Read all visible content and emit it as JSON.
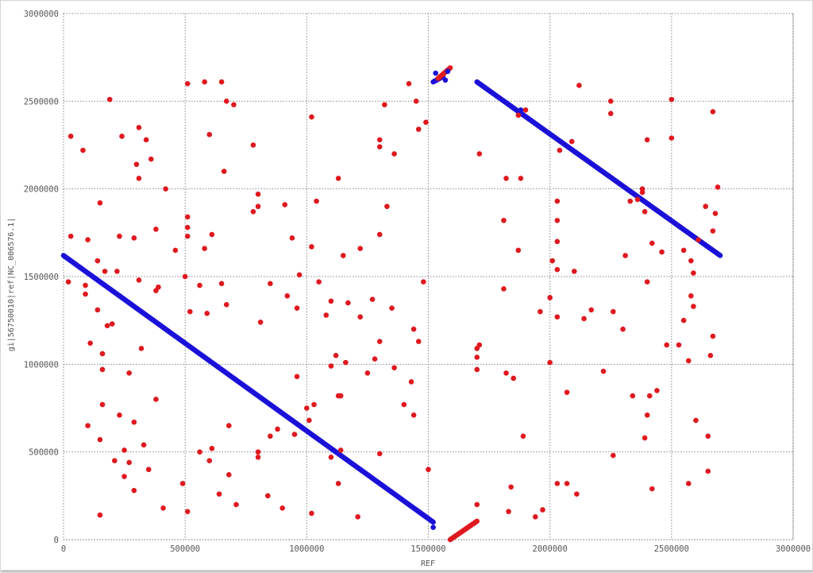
{
  "chart_data": {
    "type": "scatter",
    "xlabel": "REF",
    "ylabel": "gi|56750010|ref|NC_006576.1|",
    "xlim": [
      0,
      3000000
    ],
    "ylim": [
      0,
      3000000
    ],
    "x_ticks": [
      0,
      500000,
      1000000,
      1500000,
      2000000,
      2500000,
      3000000
    ],
    "x_tick_labels": [
      "0",
      "500000",
      "1000000",
      "1500000",
      "2000000",
      "2500000",
      "3000000"
    ],
    "y_ticks": [
      0,
      500000,
      1000000,
      1500000,
      2000000,
      2500000,
      3000000
    ],
    "y_tick_labels": [
      "0",
      "500000",
      "1000000",
      "1500000",
      "2000000",
      "2500000",
      "3000000"
    ],
    "grid": true,
    "grid_style": "dotted",
    "series": [
      {
        "color": "#1a10d8",
        "segments": [
          {
            "x0": 0,
            "y0": 1620000,
            "x1": 1520000,
            "y1": 100000
          },
          {
            "x0": 1700000,
            "y0": 2610000,
            "x1": 2700000,
            "y1": 1620000
          },
          {
            "x0": 1520000,
            "y0": 2610000,
            "x1": 1560000,
            "y1": 2640000
          }
        ],
        "points": [
          [
            1520000,
            70000
          ],
          [
            1530000,
            2660000
          ],
          [
            1570000,
            2620000
          ],
          [
            1580000,
            2670000
          ],
          [
            1880000,
            2450000
          ]
        ]
      },
      {
        "color": "#e0191f",
        "segments": [
          {
            "x0": 1590000,
            "y0": 0,
            "x1": 1700000,
            "y1": 105000
          },
          {
            "x0": 1540000,
            "y0": 2630000,
            "x1": 1590000,
            "y1": 2690000
          }
        ],
        "points": [
          [
            30000,
            2300000
          ],
          [
            80000,
            2220000
          ],
          [
            190000,
            2510000
          ],
          [
            240000,
            2300000
          ],
          [
            310000,
            2350000
          ],
          [
            340000,
            2280000
          ],
          [
            360000,
            2170000
          ],
          [
            300000,
            2140000
          ],
          [
            310000,
            2060000
          ],
          [
            420000,
            2000000
          ],
          [
            30000,
            1730000
          ],
          [
            100000,
            1710000
          ],
          [
            150000,
            1920000
          ],
          [
            230000,
            1730000
          ],
          [
            290000,
            1720000
          ],
          [
            380000,
            1770000
          ],
          [
            460000,
            1650000
          ],
          [
            500000,
            1500000
          ],
          [
            510000,
            1840000
          ],
          [
            510000,
            1780000
          ],
          [
            510000,
            1730000
          ],
          [
            510000,
            2600000
          ],
          [
            580000,
            2610000
          ],
          [
            650000,
            2610000
          ],
          [
            600000,
            2310000
          ],
          [
            660000,
            2100000
          ],
          [
            670000,
            2500000
          ],
          [
            700000,
            2480000
          ],
          [
            780000,
            2250000
          ],
          [
            800000,
            1970000
          ],
          [
            780000,
            1870000
          ],
          [
            800000,
            1900000
          ],
          [
            910000,
            1910000
          ],
          [
            940000,
            1720000
          ],
          [
            1020000,
            2410000
          ],
          [
            1040000,
            1930000
          ],
          [
            1050000,
            1470000
          ],
          [
            1020000,
            1670000
          ],
          [
            1130000,
            2060000
          ],
          [
            1150000,
            1620000
          ],
          [
            1220000,
            1660000
          ],
          [
            1300000,
            2280000
          ],
          [
            1300000,
            2240000
          ],
          [
            1320000,
            2480000
          ],
          [
            1360000,
            2200000
          ],
          [
            1330000,
            1900000
          ],
          [
            1300000,
            1740000
          ],
          [
            1420000,
            2600000
          ],
          [
            1450000,
            2500000
          ],
          [
            1460000,
            2340000
          ],
          [
            1490000,
            2380000
          ],
          [
            1480000,
            1470000
          ],
          [
            20000,
            1470000
          ],
          [
            90000,
            1450000
          ],
          [
            90000,
            1400000
          ],
          [
            140000,
            1310000
          ],
          [
            140000,
            1590000
          ],
          [
            170000,
            1530000
          ],
          [
            180000,
            1220000
          ],
          [
            200000,
            1230000
          ],
          [
            220000,
            1530000
          ],
          [
            310000,
            1480000
          ],
          [
            390000,
            1440000
          ],
          [
            380000,
            1420000
          ],
          [
            560000,
            1450000
          ],
          [
            520000,
            1300000
          ],
          [
            580000,
            1660000
          ],
          [
            610000,
            1740000
          ],
          [
            650000,
            1460000
          ],
          [
            670000,
            1340000
          ],
          [
            850000,
            1460000
          ],
          [
            920000,
            1390000
          ],
          [
            960000,
            1320000
          ],
          [
            970000,
            1510000
          ],
          [
            810000,
            1240000
          ],
          [
            1100000,
            1360000
          ],
          [
            1080000,
            1280000
          ],
          [
            1170000,
            1350000
          ],
          [
            1220000,
            1270000
          ],
          [
            1270000,
            1370000
          ],
          [
            1350000,
            1320000
          ],
          [
            1440000,
            1200000
          ],
          [
            1460000,
            1130000
          ],
          [
            1300000,
            1130000
          ],
          [
            1100000,
            990000
          ],
          [
            1120000,
            1050000
          ],
          [
            1160000,
            1010000
          ],
          [
            1250000,
            950000
          ],
          [
            1360000,
            980000
          ],
          [
            1400000,
            770000
          ],
          [
            110000,
            1120000
          ],
          [
            160000,
            1060000
          ],
          [
            160000,
            970000
          ],
          [
            270000,
            950000
          ],
          [
            320000,
            1090000
          ],
          [
            160000,
            770000
          ],
          [
            230000,
            710000
          ],
          [
            290000,
            670000
          ],
          [
            380000,
            800000
          ],
          [
            560000,
            500000
          ],
          [
            590000,
            1290000
          ],
          [
            680000,
            650000
          ],
          [
            850000,
            590000
          ],
          [
            880000,
            630000
          ],
          [
            960000,
            930000
          ],
          [
            1000000,
            750000
          ],
          [
            1010000,
            680000
          ],
          [
            1030000,
            770000
          ],
          [
            1130000,
            820000
          ],
          [
            1140000,
            820000
          ],
          [
            1280000,
            1030000
          ],
          [
            1430000,
            900000
          ],
          [
            1440000,
            710000
          ],
          [
            100000,
            650000
          ],
          [
            150000,
            570000
          ],
          [
            210000,
            450000
          ],
          [
            250000,
            510000
          ],
          [
            250000,
            360000
          ],
          [
            270000,
            440000
          ],
          [
            290000,
            280000
          ],
          [
            330000,
            540000
          ],
          [
            350000,
            400000
          ],
          [
            410000,
            180000
          ],
          [
            490000,
            320000
          ],
          [
            510000,
            160000
          ],
          [
            600000,
            450000
          ],
          [
            610000,
            520000
          ],
          [
            640000,
            260000
          ],
          [
            680000,
            370000
          ],
          [
            710000,
            200000
          ],
          [
            800000,
            500000
          ],
          [
            800000,
            470000
          ],
          [
            840000,
            250000
          ],
          [
            900000,
            180000
          ],
          [
            950000,
            600000
          ],
          [
            1020000,
            150000
          ],
          [
            1100000,
            470000
          ],
          [
            1130000,
            320000
          ],
          [
            1140000,
            510000
          ],
          [
            1210000,
            130000
          ],
          [
            1300000,
            490000
          ],
          [
            1500000,
            400000
          ],
          [
            150000,
            140000
          ],
          [
            1710000,
            2200000
          ],
          [
            1820000,
            2060000
          ],
          [
            1870000,
            2420000
          ],
          [
            1880000,
            2060000
          ],
          [
            1900000,
            2450000
          ],
          [
            2040000,
            2220000
          ],
          [
            2090000,
            2270000
          ],
          [
            2120000,
            2590000
          ],
          [
            2250000,
            2500000
          ],
          [
            2250000,
            2430000
          ],
          [
            2380000,
            2000000
          ],
          [
            2380000,
            1980000
          ],
          [
            2390000,
            1870000
          ],
          [
            2400000,
            2280000
          ],
          [
            2500000,
            2510000
          ],
          [
            2500000,
            2290000
          ],
          [
            2640000,
            1900000
          ],
          [
            2670000,
            2440000
          ],
          [
            2690000,
            2010000
          ],
          [
            2680000,
            1860000
          ],
          [
            2670000,
            1760000
          ],
          [
            1810000,
            1820000
          ],
          [
            1870000,
            1650000
          ],
          [
            2010000,
            1590000
          ],
          [
            2030000,
            1930000
          ],
          [
            2030000,
            1820000
          ],
          [
            2030000,
            1700000
          ],
          [
            2030000,
            1540000
          ],
          [
            2100000,
            1530000
          ],
          [
            2310000,
            1620000
          ],
          [
            2330000,
            1930000
          ],
          [
            2360000,
            1940000
          ],
          [
            2400000,
            1470000
          ],
          [
            2420000,
            1690000
          ],
          [
            2460000,
            1640000
          ],
          [
            2550000,
            1650000
          ],
          [
            2580000,
            1590000
          ],
          [
            2590000,
            1520000
          ],
          [
            2610000,
            1710000
          ],
          [
            2580000,
            1390000
          ],
          [
            1810000,
            1430000
          ],
          [
            1960000,
            1300000
          ],
          [
            2000000,
            1380000
          ],
          [
            2030000,
            1270000
          ],
          [
            2140000,
            1260000
          ],
          [
            2170000,
            1310000
          ],
          [
            2260000,
            1300000
          ],
          [
            2300000,
            1200000
          ],
          [
            1700000,
            1090000
          ],
          [
            1710000,
            1110000
          ],
          [
            1700000,
            1040000
          ],
          [
            1700000,
            970000
          ],
          [
            2000000,
            1010000
          ],
          [
            2480000,
            1110000
          ],
          [
            2530000,
            1110000
          ],
          [
            2570000,
            1020000
          ],
          [
            2590000,
            1330000
          ],
          [
            2550000,
            1250000
          ],
          [
            2660000,
            1050000
          ],
          [
            2670000,
            1160000
          ],
          [
            1820000,
            950000
          ],
          [
            1850000,
            920000
          ],
          [
            1890000,
            590000
          ],
          [
            1700000,
            200000
          ],
          [
            1830000,
            160000
          ],
          [
            1840000,
            300000
          ],
          [
            1940000,
            130000
          ],
          [
            1970000,
            170000
          ],
          [
            2030000,
            320000
          ],
          [
            2070000,
            840000
          ],
          [
            2070000,
            320000
          ],
          [
            2110000,
            260000
          ],
          [
            2220000,
            960000
          ],
          [
            2260000,
            480000
          ],
          [
            2340000,
            820000
          ],
          [
            2390000,
            580000
          ],
          [
            2400000,
            710000
          ],
          [
            2410000,
            820000
          ],
          [
            2420000,
            290000
          ],
          [
            2440000,
            850000
          ],
          [
            2570000,
            320000
          ],
          [
            2600000,
            680000
          ],
          [
            2650000,
            590000
          ],
          [
            2650000,
            390000
          ]
        ]
      }
    ]
  }
}
